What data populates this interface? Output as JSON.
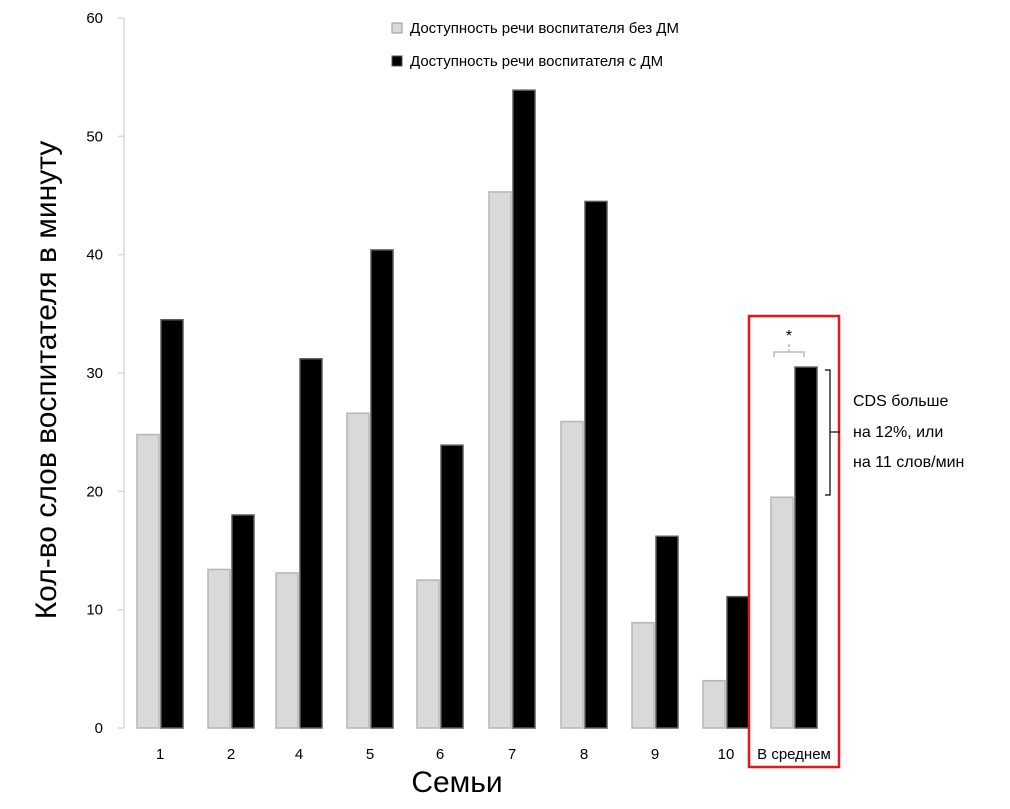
{
  "chart_data": {
    "type": "bar",
    "title": "",
    "xlabel": "Семьи",
    "ylabel": "Кол-во слов воспитателя в минуту",
    "ylim": [
      0,
      60
    ],
    "yticks": [
      0,
      10,
      20,
      30,
      40,
      50,
      60
    ],
    "categories": [
      "1",
      "2",
      "4",
      "5",
      "6",
      "7",
      "8",
      "9",
      "10",
      "В среднем"
    ],
    "series": [
      {
        "name": "Доступность речи воспитателя без ДМ",
        "color": "#d9d9d9",
        "values": [
          24.8,
          13.4,
          13.1,
          26.6,
          12.5,
          45.3,
          25.9,
          8.9,
          4.0,
          19.5
        ]
      },
      {
        "name": "Доступность речи воспитателя с ДМ",
        "color": "#000000",
        "values": [
          34.5,
          18.0,
          31.2,
          40.4,
          23.9,
          53.9,
          44.5,
          16.2,
          11.1,
          30.5
        ]
      }
    ],
    "legend_position": "top",
    "highlight": {
      "category": "В среднем",
      "color": "#e8161b",
      "significance_marker": "*",
      "note_lines": [
        "CDS больше",
        "на 12%, или",
        "на 11 слов/мин"
      ]
    }
  }
}
